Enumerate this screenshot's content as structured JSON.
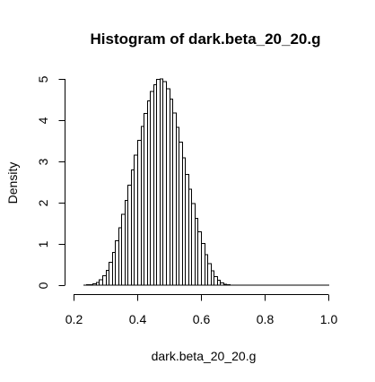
{
  "chart_data": {
    "type": "bar",
    "title": "Histogram of dark.beta_20_20.g",
    "xlabel": "dark.beta_20_20.g",
    "ylabel": "Density",
    "xlim": [
      0.2,
      1.0
    ],
    "ylim": [
      0,
      5
    ],
    "x_ticks": [
      0.2,
      0.4,
      0.6,
      0.8,
      1.0
    ],
    "x_tick_labels": [
      "0.2",
      "0.4",
      "0.6",
      "0.8",
      "1.0"
    ],
    "y_ticks": [
      0,
      1,
      2,
      3,
      4,
      5
    ],
    "y_tick_labels": [
      "0",
      "1",
      "2",
      "3",
      "4",
      "5"
    ],
    "bin_width": 0.01,
    "bin_start": 0.23,
    "values": [
      0.002,
      0.006,
      0.015,
      0.034,
      0.07,
      0.129,
      0.224,
      0.363,
      0.553,
      0.793,
      1.077,
      1.39,
      1.717,
      2.052,
      2.422,
      2.794,
      3.153,
      3.516,
      3.853,
      4.168,
      4.466,
      4.699,
      4.861,
      4.984,
      5.003,
      4.935,
      4.756,
      4.507,
      4.171,
      3.826,
      3.467,
      3.092,
      2.688,
      2.321,
      1.973,
      1.623,
      1.296,
      1.008,
      0.742,
      0.522,
      0.345,
      0.21,
      0.116,
      0.059,
      0.027,
      0.011,
      0.004,
      0.001,
      0.0005,
      0.0002,
      0.0001,
      0.0001,
      0.0001,
      0.0001,
      0.0001,
      0.0001,
      0.0001,
      0.0001,
      0.0001,
      0.0001,
      0.0001,
      0.0001,
      0.0001,
      0.0001,
      0.0001,
      0.0001,
      0.0001,
      0.0001,
      0.0001,
      0.0001,
      0.0001,
      0.0001,
      0.0001,
      0.0001,
      0.0001,
      0.0001,
      0.0001
    ],
    "grid": false,
    "bar_fill": "#ffffff",
    "bar_stroke": "#000000"
  }
}
